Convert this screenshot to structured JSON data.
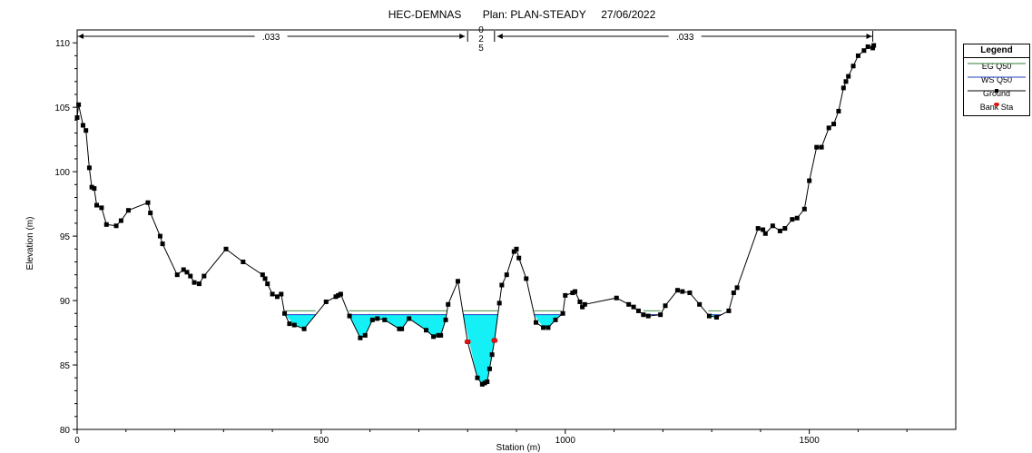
{
  "chart_data": {
    "type": "line",
    "title": "HEC-DEMNAS       Plan: PLAN-STEADY     27/06/2022",
    "xlabel": "Station (m)",
    "ylabel": "Elevation (m)",
    "xlim": [
      0,
      1800
    ],
    "ylim": [
      80,
      111
    ],
    "xticks": [
      0,
      500,
      1000,
      1500
    ],
    "yticks": [
      80,
      85,
      90,
      95,
      100,
      105,
      110
    ],
    "grid": false,
    "legend_position": "right",
    "manning": {
      "left": ".033",
      "channel": "0.25",
      "right": ".033",
      "left_bank_station": 800,
      "right_bank_station": 855,
      "end_station": 1630
    },
    "ws_elevation": 88.9,
    "eg_elevation": 89.2,
    "bank_stations": [
      {
        "x": 800,
        "y": 86.8
      },
      {
        "x": 855,
        "y": 86.9
      }
    ],
    "ground": {
      "x": [
        0,
        3,
        12,
        18,
        25,
        30,
        35,
        40,
        50,
        60,
        80,
        90,
        105,
        145,
        150,
        170,
        175,
        205,
        218,
        225,
        232,
        240,
        250,
        260,
        305,
        340,
        380,
        385,
        390,
        400,
        410,
        418,
        425,
        435,
        445,
        465,
        510,
        530,
        535,
        540,
        558,
        580,
        590,
        605,
        615,
        630,
        660,
        665,
        680,
        715,
        730,
        740,
        745,
        755,
        760,
        780,
        800,
        820,
        830,
        835,
        840,
        845,
        850,
        855,
        865,
        870,
        880,
        895,
        900,
        905,
        920,
        940,
        955,
        965,
        980,
        995,
        1000,
        1015,
        1020,
        1030,
        1035,
        1040,
        1105,
        1130,
        1140,
        1150,
        1160,
        1170,
        1195,
        1205,
        1230,
        1240,
        1255,
        1275,
        1295,
        1310,
        1335,
        1345,
        1352,
        1395,
        1405,
        1410,
        1425,
        1440,
        1450,
        1465,
        1475,
        1490,
        1500,
        1515,
        1525,
        1540,
        1550,
        1560,
        1570,
        1575,
        1580,
        1590,
        1600,
        1612,
        1620,
        1630,
        1632
      ],
      "y": [
        104.2,
        105.2,
        103.6,
        103.2,
        100.3,
        98.8,
        98.7,
        97.4,
        97.2,
        95.9,
        95.8,
        96.2,
        97.0,
        97.6,
        96.8,
        95.0,
        94.4,
        92.0,
        92.4,
        92.2,
        91.9,
        91.4,
        91.3,
        91.9,
        94.0,
        93.0,
        92.0,
        91.7,
        91.3,
        90.5,
        90.3,
        90.5,
        89.0,
        88.2,
        88.1,
        87.8,
        89.9,
        90.3,
        90.4,
        90.5,
        88.8,
        87.1,
        87.3,
        88.5,
        88.6,
        88.5,
        87.8,
        87.8,
        88.6,
        87.7,
        87.2,
        87.3,
        87.3,
        88.5,
        89.7,
        91.5,
        86.8,
        84.0,
        83.5,
        83.6,
        83.7,
        84.7,
        85.8,
        86.9,
        89.8,
        91.2,
        92.0,
        93.8,
        94.0,
        93.3,
        91.7,
        88.3,
        87.9,
        87.9,
        88.5,
        89.0,
        90.4,
        90.6,
        90.7,
        89.9,
        89.5,
        89.7,
        90.2,
        89.7,
        89.5,
        89.2,
        88.9,
        88.8,
        88.9,
        89.6,
        90.8,
        90.7,
        90.6,
        89.7,
        88.8,
        88.7,
        89.2,
        90.6,
        91.0,
        95.6,
        95.5,
        95.2,
        95.8,
        95.4,
        95.6,
        96.3,
        96.4,
        97.1,
        99.3,
        101.9,
        101.9,
        103.4,
        103.7,
        104.7,
        106.5,
        107.0,
        107.4,
        108.2,
        109.0,
        109.4,
        109.7,
        109.6,
        109.8
      ]
    },
    "series": [
      {
        "name": "EG Q50",
        "color": "#2e7d32"
      },
      {
        "name": "WS Q50",
        "color": "#1f3fbf"
      },
      {
        "name": "Ground",
        "color": "#000000"
      },
      {
        "name": "Bank Sta",
        "color": "#e01010"
      }
    ],
    "water_fill_color": "#14f0f5"
  },
  "legend": {
    "title": "Legend",
    "items": [
      "EG Q50",
      "WS Q50",
      "Ground",
      "Bank Sta"
    ]
  }
}
